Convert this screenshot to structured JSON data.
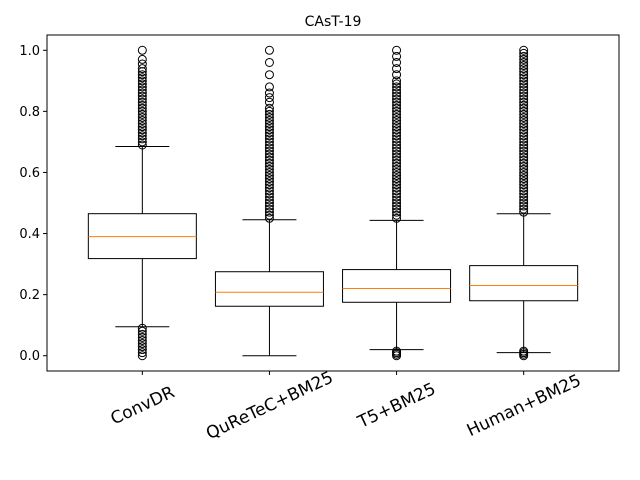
{
  "chart_data": {
    "type": "box",
    "title": "CAsT-19",
    "xlabel": "",
    "ylabel": "",
    "ylim": [
      -0.05,
      1.05
    ],
    "yticks": [
      0.0,
      0.2,
      0.4,
      0.6,
      0.8,
      1.0
    ],
    "ytick_labels": [
      "0.0",
      "0.2",
      "0.4",
      "0.6",
      "0.8",
      "1.0"
    ],
    "categories": [
      "ConvDR",
      "QuReTeC+BM25",
      "T5+BM25",
      "Human+BM25"
    ],
    "grid": false,
    "colors": {
      "box": "#000000",
      "median": "#ff7f0e",
      "flier": "#000000"
    },
    "boxes": [
      {
        "category": "ConvDR",
        "whisker_low": 0.095,
        "q1": 0.318,
        "median": 0.39,
        "q3": 0.465,
        "whisker_high": 0.685,
        "outliers_high": [
          0.69,
          0.7,
          0.71,
          0.72,
          0.73,
          0.74,
          0.75,
          0.76,
          0.77,
          0.78,
          0.79,
          0.8,
          0.81,
          0.82,
          0.83,
          0.84,
          0.85,
          0.86,
          0.87,
          0.88,
          0.89,
          0.9,
          0.91,
          0.92,
          0.93,
          0.94,
          0.955,
          0.97,
          1.0
        ],
        "outliers_low": [
          0.09,
          0.08,
          0.07,
          0.06,
          0.05,
          0.04,
          0.03,
          0.02,
          0.01,
          0.0
        ]
      },
      {
        "category": "QuReTeC+BM25",
        "whisker_low": 0.0,
        "q1": 0.162,
        "median": 0.208,
        "q3": 0.275,
        "whisker_high": 0.445,
        "outliers_high": [
          0.45,
          0.46,
          0.47,
          0.48,
          0.49,
          0.5,
          0.51,
          0.52,
          0.53,
          0.54,
          0.55,
          0.56,
          0.57,
          0.58,
          0.59,
          0.6,
          0.61,
          0.62,
          0.63,
          0.64,
          0.65,
          0.66,
          0.67,
          0.68,
          0.69,
          0.7,
          0.71,
          0.72,
          0.73,
          0.74,
          0.75,
          0.76,
          0.77,
          0.78,
          0.79,
          0.8,
          0.81,
          0.83,
          0.845,
          0.86,
          0.88,
          0.92,
          0.96,
          1.0
        ],
        "outliers_low": []
      },
      {
        "category": "T5+BM25",
        "whisker_low": 0.02,
        "q1": 0.175,
        "median": 0.22,
        "q3": 0.282,
        "whisker_high": 0.443,
        "outliers_high": [
          0.45,
          0.46,
          0.47,
          0.48,
          0.49,
          0.5,
          0.51,
          0.52,
          0.53,
          0.54,
          0.55,
          0.56,
          0.57,
          0.58,
          0.59,
          0.6,
          0.61,
          0.62,
          0.63,
          0.64,
          0.65,
          0.66,
          0.67,
          0.68,
          0.69,
          0.7,
          0.71,
          0.72,
          0.73,
          0.74,
          0.75,
          0.76,
          0.77,
          0.78,
          0.79,
          0.8,
          0.81,
          0.82,
          0.83,
          0.84,
          0.85,
          0.86,
          0.87,
          0.88,
          0.89,
          0.9,
          0.92,
          0.94,
          0.96,
          0.98,
          1.0
        ],
        "outliers_low": [
          0.015,
          0.01,
          0.005,
          0.0
        ]
      },
      {
        "category": "Human+BM25",
        "whisker_low": 0.01,
        "q1": 0.18,
        "median": 0.23,
        "q3": 0.295,
        "whisker_high": 0.465,
        "outliers_high": [
          0.47,
          0.48,
          0.49,
          0.5,
          0.51,
          0.52,
          0.53,
          0.54,
          0.55,
          0.56,
          0.57,
          0.58,
          0.59,
          0.6,
          0.61,
          0.62,
          0.63,
          0.64,
          0.65,
          0.66,
          0.67,
          0.68,
          0.69,
          0.7,
          0.71,
          0.72,
          0.73,
          0.74,
          0.75,
          0.76,
          0.77,
          0.78,
          0.79,
          0.8,
          0.81,
          0.82,
          0.83,
          0.84,
          0.85,
          0.86,
          0.87,
          0.88,
          0.89,
          0.9,
          0.91,
          0.92,
          0.93,
          0.94,
          0.95,
          0.96,
          0.97,
          0.98,
          0.99,
          1.0
        ],
        "outliers_low": [
          0.015,
          0.01,
          0.005,
          0.0
        ]
      }
    ]
  }
}
